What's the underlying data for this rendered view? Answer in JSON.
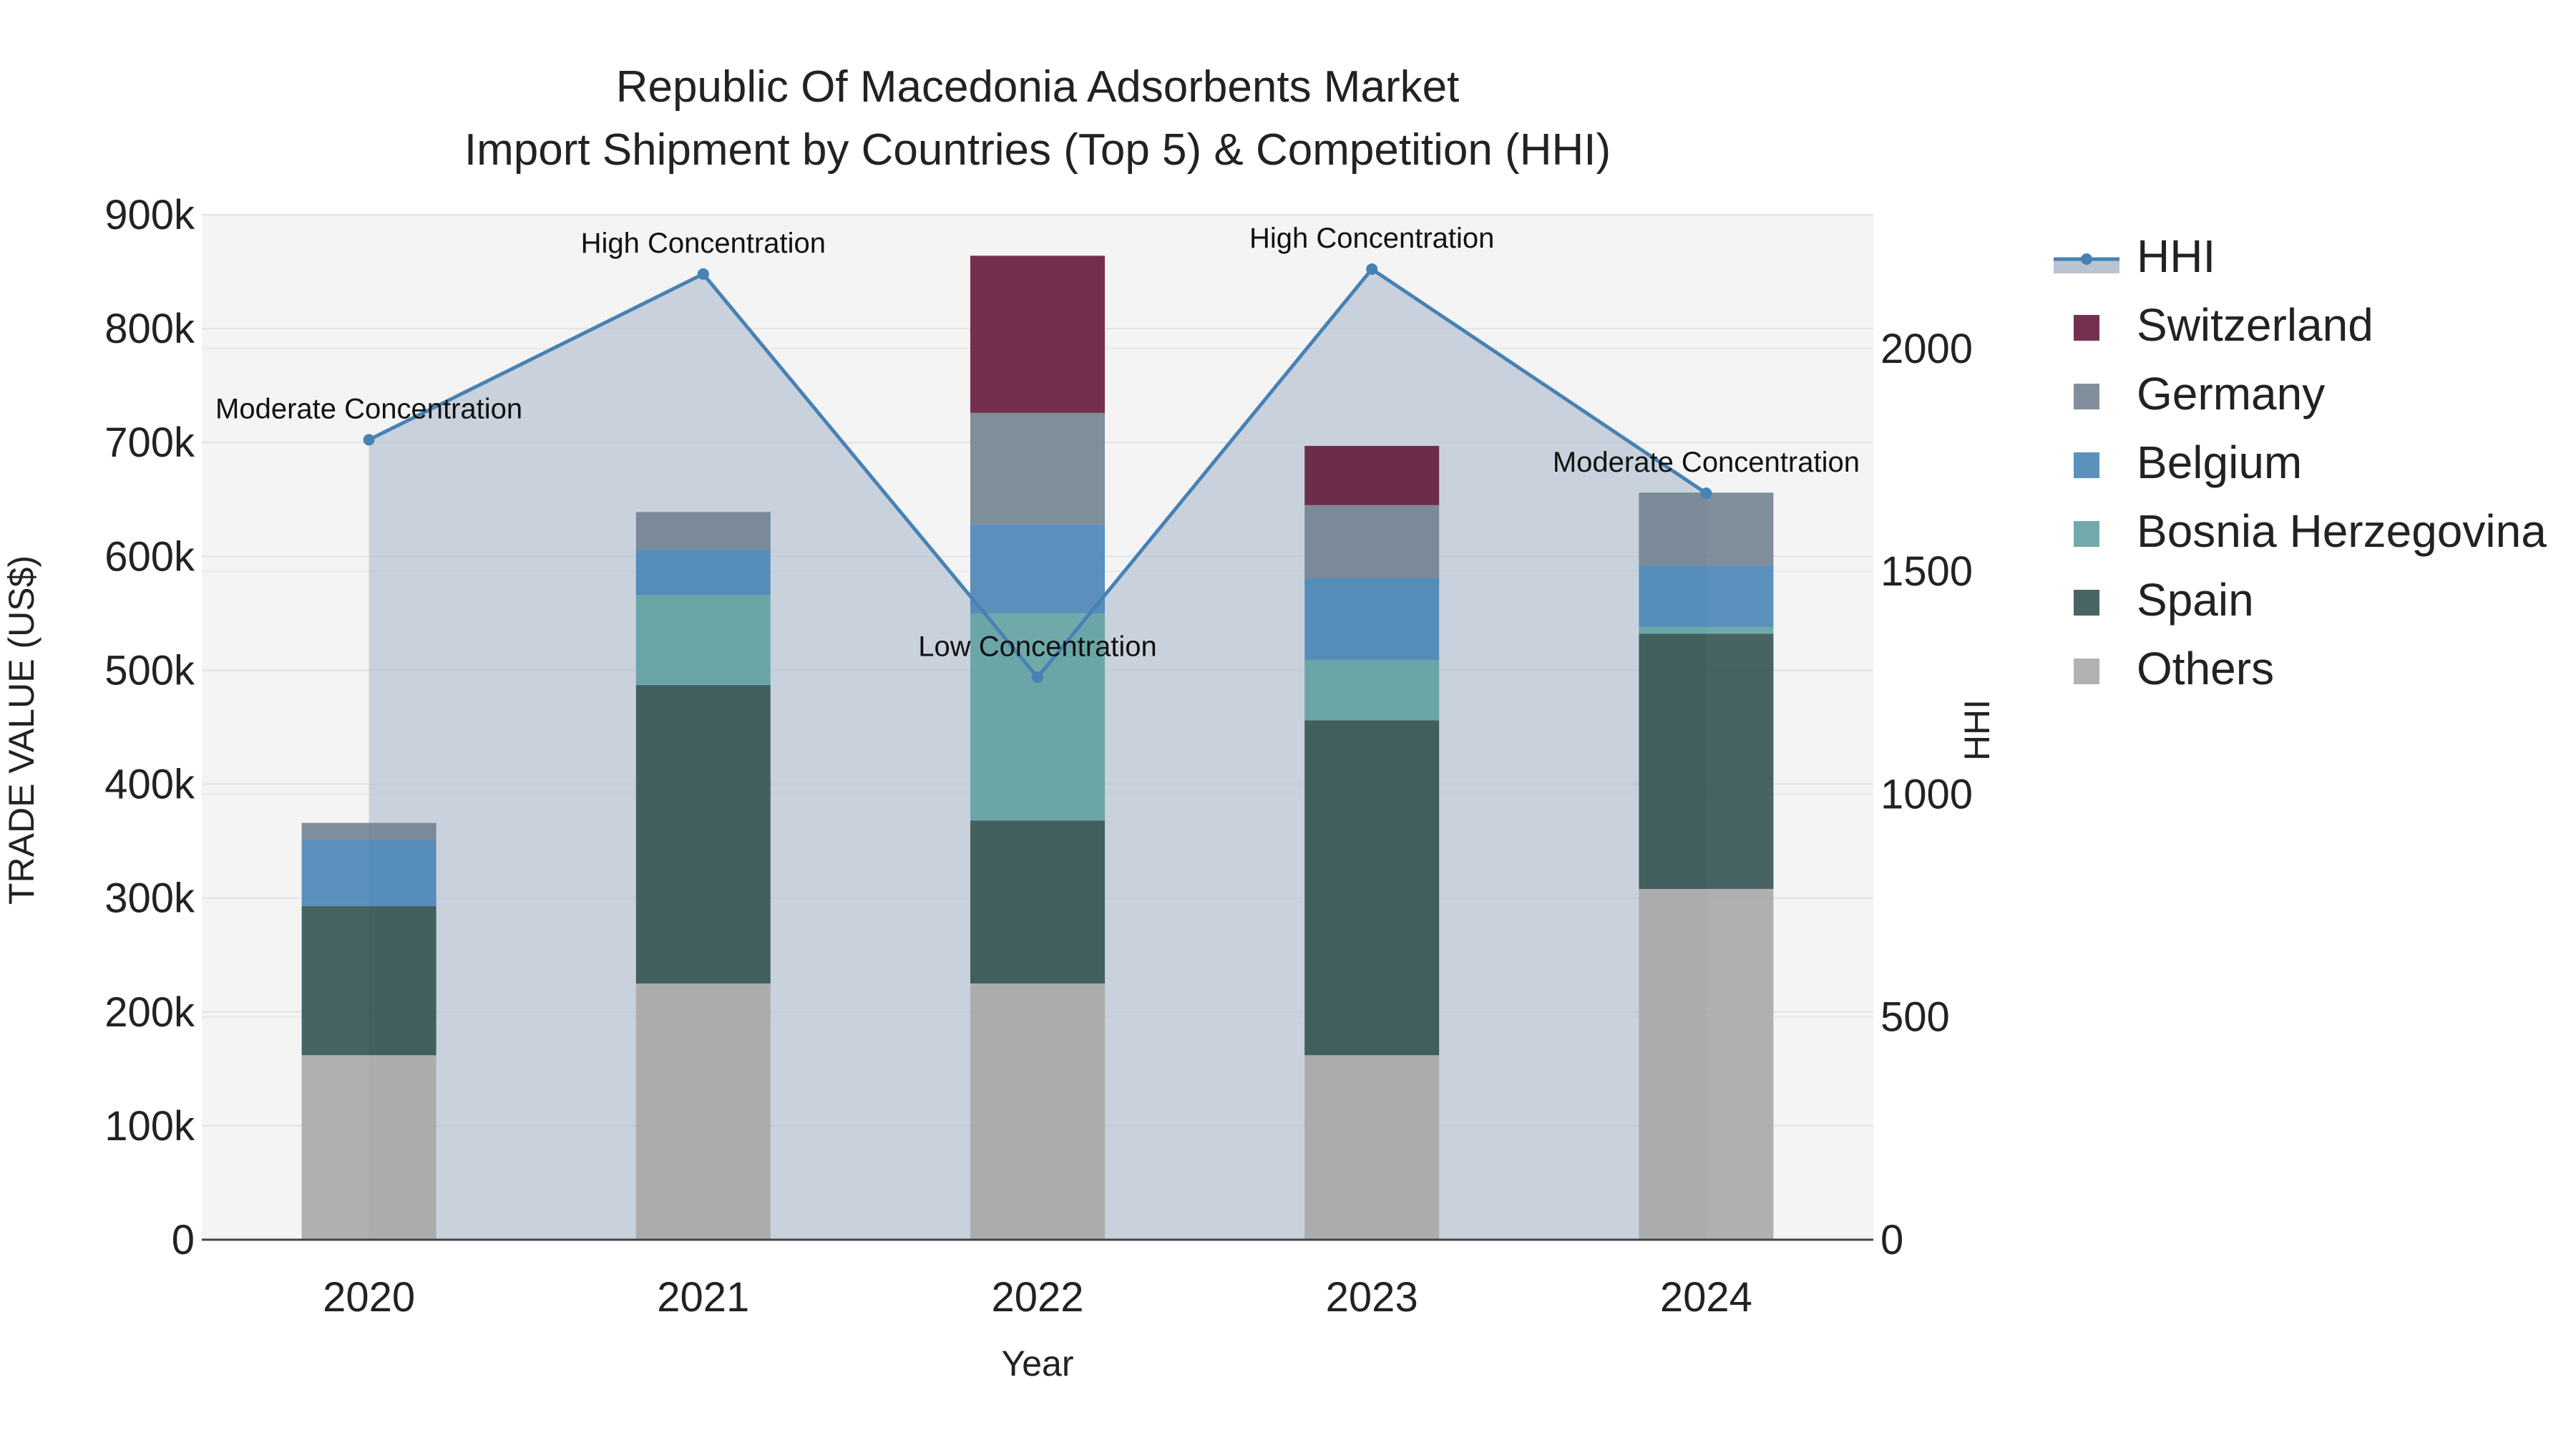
{
  "chart_data": {
    "type": "bar",
    "stacked": true,
    "title": "Republic Of Macedonia Adsorbents Market",
    "subtitle": "Import Shipment by Countries (Top 5) & Competition (HHI)",
    "xlabel": "Year",
    "ylabel": "TRADE VALUE (US$)",
    "y2label": "HHI",
    "categories": [
      "2020",
      "2021",
      "2022",
      "2023",
      "2024"
    ],
    "ylim": [
      0,
      900000
    ],
    "y2lim": [
      0,
      2300
    ],
    "yticks": [
      0,
      100000,
      200000,
      300000,
      400000,
      500000,
      600000,
      700000,
      800000,
      900000
    ],
    "ytick_labels": [
      "0",
      "100k",
      "200k",
      "300k",
      "400k",
      "500k",
      "600k",
      "700k",
      "800k",
      "900k"
    ],
    "y2ticks": [
      0,
      500,
      1000,
      1500,
      2000
    ],
    "y2tick_labels": [
      "0",
      "500",
      "1000",
      "1500",
      "2000"
    ],
    "series": [
      {
        "name": "Others",
        "color": "#a6a6a6",
        "values": [
          162000,
          225000,
          225000,
          162000,
          308000
        ]
      },
      {
        "name": "Spain",
        "color": "#2f4f4f",
        "values": [
          131000,
          262000,
          143000,
          294000,
          224000
        ]
      },
      {
        "name": "Bosnia Herzegovina",
        "color": "#5f9ea0",
        "values": [
          0,
          79000,
          182000,
          53000,
          6000
        ]
      },
      {
        "name": "Belgium",
        "color": "#4682b4",
        "values": [
          58000,
          40000,
          78000,
          72000,
          54000
        ]
      },
      {
        "name": "Germany",
        "color": "#708090",
        "values": [
          15000,
          33000,
          98000,
          64000,
          64000
        ]
      },
      {
        "name": "Switzerland",
        "color": "#601437",
        "values": [
          0,
          0,
          138000,
          52000,
          0
        ]
      }
    ],
    "hhi": {
      "name": "HHI",
      "color": "#4682b4",
      "values": [
        1795,
        2167,
        1262,
        2178,
        1675
      ],
      "annotations": [
        "Moderate Concentration",
        "High Concentration",
        "Low Concentration",
        "High Concentration",
        "Moderate Concentration"
      ]
    },
    "legend_order": [
      "HHI",
      "Switzerland",
      "Germany",
      "Belgium",
      "Bosnia Herzegovina",
      "Spain",
      "Others"
    ],
    "legend_position": "right",
    "grid": true
  }
}
